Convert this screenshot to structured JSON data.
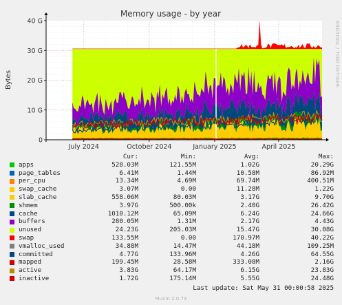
{
  "chart_data": {
    "type": "area",
    "title": "Memory usage - by year",
    "ylabel": "Bytes",
    "xlabel": "",
    "ylim": [
      0,
      40
    ],
    "yticks": [
      "0",
      "10 G",
      "20 G",
      "30 G",
      "40 G"
    ],
    "ytick_values": [
      0,
      10,
      20,
      30,
      40
    ],
    "y_unit": "GB",
    "x_range": [
      "2024-05-09",
      "2025-06-01"
    ],
    "xticks": [
      {
        "label": "July 2024",
        "date": "2024-07-01"
      },
      {
        "label": "October 2024",
        "date": "2024-10-01"
      },
      {
        "label": "January 2025",
        "date": "2025-01-01"
      },
      {
        "label": "April 2025",
        "date": "2025-04-01"
      }
    ],
    "data_start": "2024-06-15",
    "gap_date": "2025-01-03",
    "grid": true,
    "stack_total_gb": 30.5,
    "swap_peak": {
      "date": "2025-03-05",
      "value_gb": 40.2
    },
    "series": [
      {
        "name": "apps",
        "color": "#00cc00",
        "stack": "bottom",
        "start_gb": 0.5,
        "end_gb": 0.6
      },
      {
        "name": "page_tables",
        "color": "#0066b3",
        "stack": "bottom",
        "start_gb": 0.01,
        "end_gb": 0.01
      },
      {
        "name": "per_cpu",
        "color": "#ff8000",
        "stack": "bottom",
        "start_gb": 0.07,
        "end_gb": 0.07
      },
      {
        "name": "swap_cache",
        "color": "#ffcc00",
        "stack": "bottom",
        "start_gb": 0.02,
        "end_gb": 0.02
      },
      {
        "name": "slab_cache",
        "color": "#ffcc00",
        "stack": "bottom",
        "start_gb": 2.5,
        "end_gb": 5.0
      },
      {
        "name": "shmem",
        "color": "#008f00",
        "stack": "bottom",
        "start_gb": 0.5,
        "end_gb": 1.5
      },
      {
        "name": "cache",
        "color": "#00487d",
        "stack": "bottom",
        "start_gb": 3.0,
        "end_gb": 5.5
      },
      {
        "name": "buffers",
        "color": "#8c00c8",
        "stack": "bottom",
        "start_gb": 4.0,
        "end_gb": 9.0
      },
      {
        "name": "unused",
        "color": "#ccff00",
        "stack": "fill",
        "start_gb": 20.0,
        "end_gb": 10.0
      },
      {
        "name": "swap",
        "color": "#ff0000",
        "stack": "top",
        "start_gb": 0.1,
        "end_gb": 0.1
      },
      {
        "name": "vmalloc_used",
        "color": "#808080",
        "type": "line",
        "value_gb": 0.04
      },
      {
        "name": "committed",
        "color": "#00487d",
        "type": "line",
        "start_gb": 3.0,
        "end_gb": 6.5
      },
      {
        "name": "mapped",
        "color": "#cc0000",
        "type": "line",
        "value_gb": 0.3
      },
      {
        "name": "active",
        "color": "#b38f00",
        "type": "line",
        "start_gb": 5.0,
        "end_gb": 8.0
      },
      {
        "name": "inactive",
        "color": "#cc0000",
        "type": "line",
        "start_gb": 5.0,
        "end_gb": 7.0
      }
    ]
  },
  "legend": {
    "headers": {
      "cur": "Cur:",
      "min": "Min:",
      "avg": "Avg:",
      "max": "Max:"
    },
    "rows": [
      {
        "name": "apps",
        "color": "#00cc00",
        "cur": "528.03M",
        "min": "121.55M",
        "avg": "1.02G",
        "max": "20.29G"
      },
      {
        "name": "page_tables",
        "color": "#0066b3",
        "cur": "6.41M",
        "min": "1.44M",
        "avg": "10.58M",
        "max": "86.92M"
      },
      {
        "name": "per_cpu",
        "color": "#ff8000",
        "cur": "13.34M",
        "min": "4.69M",
        "avg": "69.74M",
        "max": "400.51M"
      },
      {
        "name": "swap_cache",
        "color": "#ffcc00",
        "cur": "3.07M",
        "min": "0.00",
        "avg": "11.28M",
        "max": "1.22G"
      },
      {
        "name": "slab_cache",
        "color": "#ffcc00",
        "cur": "558.06M",
        "min": "80.03M",
        "avg": "3.17G",
        "max": "9.70G"
      },
      {
        "name": "shmem",
        "color": "#008f00",
        "cur": "3.97G",
        "min": "500.00k",
        "avg": "2.40G",
        "max": "26.42G"
      },
      {
        "name": "cache",
        "color": "#00487d",
        "cur": "1010.12M",
        "min": "65.09M",
        "avg": "6.24G",
        "max": "24.66G"
      },
      {
        "name": "buffers",
        "color": "#8c00c8",
        "cur": "280.05M",
        "min": "1.31M",
        "avg": "2.17G",
        "max": "4.43G"
      },
      {
        "name": "unused",
        "color": "#ccff00",
        "cur": "24.23G",
        "min": "205.03M",
        "avg": "15.47G",
        "max": "30.08G"
      },
      {
        "name": "swap",
        "color": "#ff0000",
        "cur": "133.55M",
        "min": "0.00",
        "avg": "170.97M",
        "max": "40.22G"
      },
      {
        "name": "vmalloc_used",
        "color": "#808080",
        "cur": "34.88M",
        "min": "14.47M",
        "avg": "44.18M",
        "max": "109.25M"
      },
      {
        "name": "committed",
        "color": "#00487d",
        "cur": "4.77G",
        "min": "133.96M",
        "avg": "4.26G",
        "max": "64.55G"
      },
      {
        "name": "mapped",
        "color": "#cc0000",
        "cur": "199.45M",
        "min": "28.58M",
        "avg": "333.08M",
        "max": "2.16G"
      },
      {
        "name": "active",
        "color": "#b38f00",
        "cur": "3.83G",
        "min": "64.17M",
        "avg": "6.15G",
        "max": "23.83G"
      },
      {
        "name": "inactive",
        "color": "#cc0000",
        "cur": "1.72G",
        "min": "175.14M",
        "avg": "5.55G",
        "max": "24.48G"
      }
    ]
  },
  "footer": {
    "last_update": "Last update: Sat May 31 00:00:58 2025",
    "generator": "Munin 2.0.73",
    "watermark": "RRDTOOL / TOBI OETIKER"
  }
}
